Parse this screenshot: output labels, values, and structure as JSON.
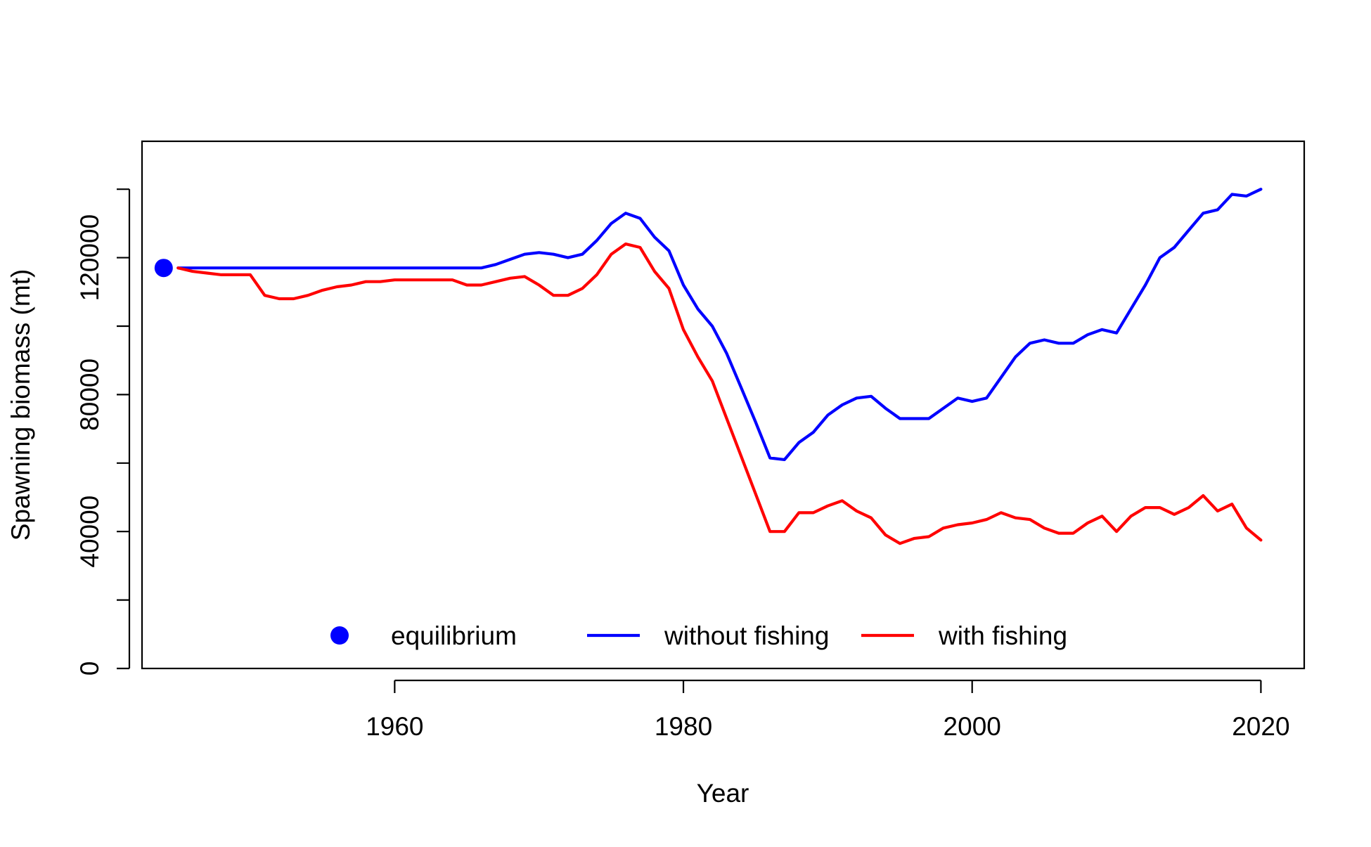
{
  "chart_data": {
    "type": "line",
    "title": "",
    "xlabel": "Year",
    "ylabel": "Spawning biomass (mt)",
    "xlim": [
      1942.5,
      2023
    ],
    "ylim": [
      0,
      154000
    ],
    "x_ticks": [
      1960,
      1980,
      2000,
      2020
    ],
    "y_ticks": [
      0,
      20000,
      40000,
      60000,
      80000,
      100000,
      120000,
      140000
    ],
    "y_tick_labels": [
      "0",
      "40000",
      "80000",
      "120000"
    ],
    "y_labeled_ticks": [
      0,
      40000,
      80000,
      120000
    ],
    "grid": false,
    "legend_position": "bottom, horizontal, inside plot",
    "equilibrium": {
      "name": "equilibrium",
      "x": 1944,
      "y": 117000,
      "color": "#0000ff"
    },
    "series": [
      {
        "name": "without fishing",
        "color": "#0000ff",
        "x": [
          1945,
          1946,
          1947,
          1948,
          1949,
          1950,
          1951,
          1952,
          1953,
          1954,
          1955,
          1956,
          1957,
          1958,
          1959,
          1960,
          1961,
          1962,
          1963,
          1964,
          1965,
          1966,
          1967,
          1968,
          1969,
          1970,
          1971,
          1972,
          1973,
          1974,
          1975,
          1976,
          1977,
          1978,
          1979,
          1980,
          1981,
          1982,
          1983,
          1984,
          1985,
          1986,
          1987,
          1988,
          1989,
          1990,
          1991,
          1992,
          1993,
          1994,
          1995,
          1996,
          1997,
          1998,
          1999,
          2000,
          2001,
          2002,
          2003,
          2004,
          2005,
          2006,
          2007,
          2008,
          2009,
          2010,
          2011,
          2012,
          2013,
          2014,
          2015,
          2016,
          2017,
          2018,
          2019,
          2020
        ],
        "values": [
          117000,
          117000,
          117000,
          117000,
          117000,
          117000,
          117000,
          117000,
          117000,
          117000,
          117000,
          117000,
          117000,
          117000,
          117000,
          117000,
          117000,
          117000,
          117000,
          117000,
          117000,
          117000,
          118000,
          119500,
          121000,
          121500,
          121000,
          120000,
          121000,
          125000,
          130000,
          133000,
          131500,
          126000,
          122000,
          112000,
          105000,
          100000,
          92000,
          82000,
          72000,
          61500,
          61000,
          66000,
          69000,
          74000,
          77000,
          79000,
          79500,
          76000,
          73000,
          73000,
          73000,
          76000,
          79000,
          78000,
          79000,
          85000,
          91000,
          95000,
          96000,
          95000,
          95000,
          97500,
          99000,
          98000,
          105000,
          112000,
          120000,
          123000,
          128000,
          133000,
          134000,
          138500,
          138000,
          140000
        ]
      },
      {
        "name": "with fishing",
        "color": "#ff0000",
        "x": [
          1945,
          1946,
          1947,
          1948,
          1949,
          1950,
          1951,
          1952,
          1953,
          1954,
          1955,
          1956,
          1957,
          1958,
          1959,
          1960,
          1961,
          1962,
          1963,
          1964,
          1965,
          1966,
          1967,
          1968,
          1969,
          1970,
          1971,
          1972,
          1973,
          1974,
          1975,
          1976,
          1977,
          1978,
          1979,
          1980,
          1981,
          1982,
          1983,
          1984,
          1985,
          1986,
          1987,
          1988,
          1989,
          1990,
          1991,
          1992,
          1993,
          1994,
          1995,
          1996,
          1997,
          1998,
          1999,
          2000,
          2001,
          2002,
          2003,
          2004,
          2005,
          2006,
          2007,
          2008,
          2009,
          2010,
          2011,
          2012,
          2013,
          2014,
          2015,
          2016,
          2017,
          2018,
          2019,
          2020
        ],
        "values": [
          117000,
          116000,
          115500,
          115000,
          115000,
          115000,
          109000,
          108000,
          108000,
          109000,
          110500,
          111500,
          112000,
          113000,
          113000,
          113500,
          113500,
          113500,
          113500,
          113500,
          112000,
          112000,
          113000,
          114000,
          114500,
          112000,
          109000,
          109000,
          111000,
          115000,
          121000,
          124000,
          123000,
          116000,
          111000,
          99000,
          91000,
          84000,
          73000,
          62000,
          51000,
          40000,
          40000,
          45500,
          45500,
          47500,
          49000,
          46000,
          44000,
          39000,
          36500,
          38000,
          38500,
          41000,
          42000,
          42500,
          43500,
          45500,
          44000,
          43500,
          41000,
          39500,
          39500,
          42500,
          44500,
          40000,
          44500,
          47000,
          47000,
          45000,
          47000,
          50500,
          46000,
          48000,
          41000,
          37500
        ]
      }
    ]
  }
}
